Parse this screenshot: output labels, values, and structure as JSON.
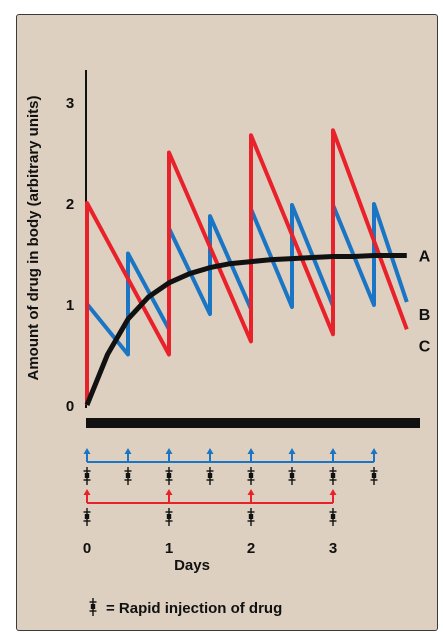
{
  "chart_data": {
    "type": "line",
    "ylabel": "Amount of drug in body (arbitrary units)",
    "xlabel": "Days",
    "ylim": [
      0,
      3
    ],
    "xlim": [
      0,
      3.5
    ],
    "y_ticks": [
      "0",
      "1",
      "2",
      "3"
    ],
    "x_ticks": [
      "0",
      "1",
      "2",
      "3"
    ],
    "grid": false,
    "series": [
      {
        "name": "A",
        "color": "#111111",
        "points": [
          [
            0,
            0
          ],
          [
            0.25,
            0.5
          ],
          [
            0.5,
            0.85
          ],
          [
            0.75,
            1.07
          ],
          [
            1,
            1.21
          ],
          [
            1.25,
            1.3
          ],
          [
            1.5,
            1.36
          ],
          [
            1.75,
            1.4
          ],
          [
            2,
            1.42
          ],
          [
            2.25,
            1.44
          ],
          [
            2.5,
            1.45
          ],
          [
            2.75,
            1.46
          ],
          [
            3,
            1.47
          ],
          [
            3.25,
            1.47
          ],
          [
            3.5,
            1.48
          ],
          [
            3.9,
            1.48
          ]
        ]
      },
      {
        "name": "B",
        "color": "#1a75c4",
        "points": [
          [
            0,
            0
          ],
          [
            0,
            1
          ],
          [
            0.5,
            0.5
          ],
          [
            0.5,
            1.5
          ],
          [
            1,
            0.75
          ],
          [
            1,
            1.75
          ],
          [
            1.5,
            0.9
          ],
          [
            1.5,
            1.87
          ],
          [
            2,
            0.95
          ],
          [
            2,
            1.94
          ],
          [
            2.5,
            0.97
          ],
          [
            2.5,
            1.98
          ],
          [
            3,
            0.98
          ],
          [
            3,
            1.98
          ],
          [
            3.5,
            0.99
          ],
          [
            3.5,
            1.99
          ],
          [
            3.9,
            1.02
          ]
        ]
      },
      {
        "name": "C",
        "color": "#e8212a",
        "points": [
          [
            0,
            0
          ],
          [
            0,
            2
          ],
          [
            1,
            0.5
          ],
          [
            1,
            2.5
          ],
          [
            2,
            0.63
          ],
          [
            2,
            2.67
          ],
          [
            3,
            0.7
          ],
          [
            3,
            2.72
          ],
          [
            3.9,
            0.75
          ]
        ]
      }
    ],
    "dosing_schedules": [
      {
        "color": "#1a75c4",
        "injection_times": [
          0,
          0.5,
          1,
          1.5,
          2,
          2.5,
          3,
          3.5
        ]
      },
      {
        "color": "#e8212a",
        "injection_times": [
          0,
          1,
          2,
          3
        ]
      }
    ],
    "legend_text": "= Rapid injection of drug"
  }
}
